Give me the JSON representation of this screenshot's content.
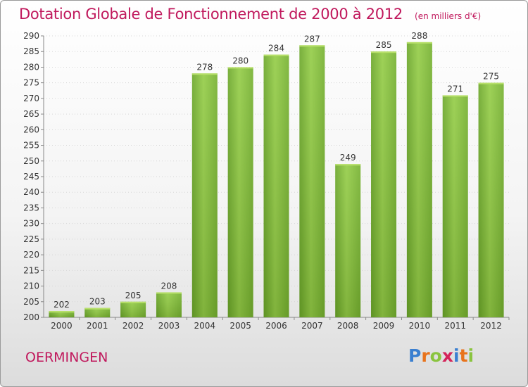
{
  "title": "Dotation Globale de Fonctionnement de 2000 à 2012",
  "subtitle": "(en milliers d'€)",
  "commune": "OERMINGEN",
  "logo": {
    "letters": [
      "P",
      "r",
      "o",
      "x",
      "i",
      "t",
      "i"
    ],
    "colors": [
      "#3a7fd0",
      "#e8731c",
      "#8ac43f",
      "#d4245a",
      "#3a7fd0",
      "#e8731c",
      "#8ac43f"
    ]
  },
  "colors": {
    "bar": "#7cbb32",
    "bar_light": "#a6d84c",
    "accent": "#c0185c"
  },
  "chart_data": {
    "type": "bar",
    "title": "Dotation Globale de Fonctionnement de 2000 à 2012",
    "subtitle": "(en milliers d'€)",
    "categories": [
      "2000",
      "2001",
      "2002",
      "2003",
      "2004",
      "2005",
      "2006",
      "2007",
      "2008",
      "2009",
      "2010",
      "2011",
      "2012"
    ],
    "values": [
      202,
      203,
      205,
      208,
      278,
      280,
      284,
      287,
      249,
      285,
      288,
      271,
      275
    ],
    "ylim": [
      200,
      290
    ],
    "yticks": [
      200,
      205,
      210,
      215,
      220,
      225,
      230,
      235,
      240,
      245,
      250,
      255,
      260,
      265,
      270,
      275,
      280,
      285,
      290
    ],
    "grid": true,
    "legend": "none"
  }
}
